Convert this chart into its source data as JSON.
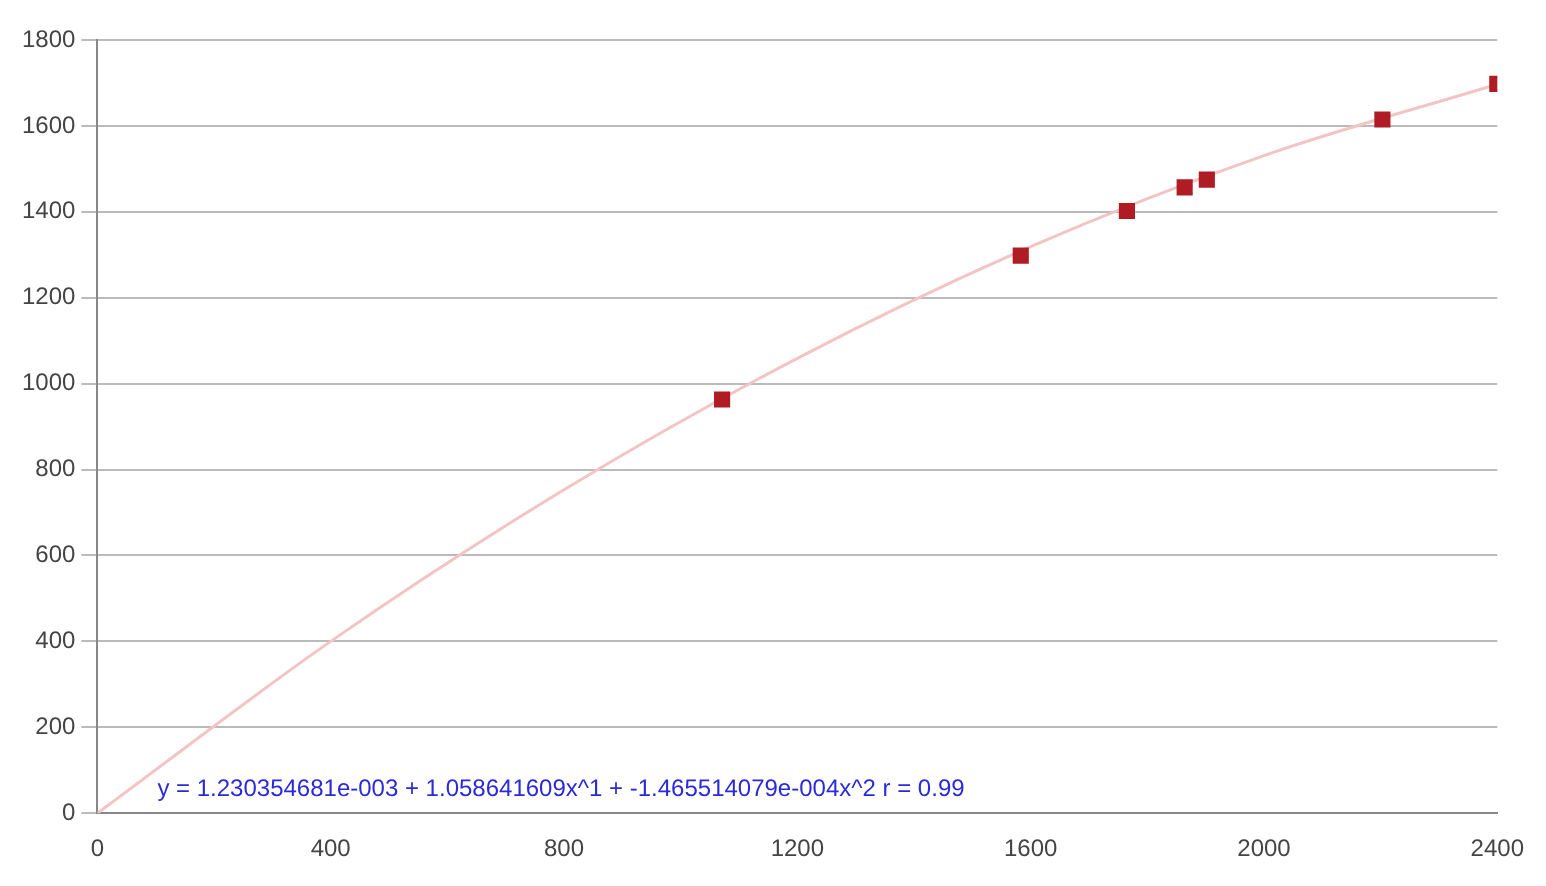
{
  "chart_data": {
    "type": "scatter",
    "grid": "y",
    "legend": false,
    "xlim": [
      0,
      2400
    ],
    "xticks": [
      0,
      400,
      800,
      1200,
      1600,
      2000,
      2400
    ],
    "ylim": [
      0,
      1800
    ],
    "yticks": [
      0,
      200,
      400,
      600,
      800,
      1000,
      1200,
      1400,
      1600,
      1800
    ],
    "series": [
      {
        "marker": "square",
        "color": "#b01c24",
        "x": [
          1071,
          1583,
          1765,
          1864,
          1902,
          2203,
          2400
        ],
        "values": [
          963,
          1298,
          1402,
          1457,
          1475,
          1615,
          1698
        ]
      },
      {
        "type": "line",
        "marker": "none",
        "color": "#f2c4c4",
        "x": [
          0,
          400,
          800,
          1200,
          1600,
          2000,
          2400
        ],
        "values": [
          0,
          400,
          753,
          1059,
          1319,
          1531,
          1697
        ]
      }
    ],
    "annotations": [
      "y = 1.230354681e-003 + 1.058641609x^1 + -1.465514079e-004x^2 r = 0.99"
    ]
  }
}
